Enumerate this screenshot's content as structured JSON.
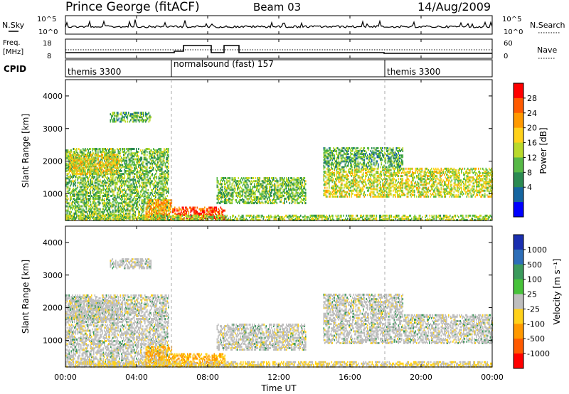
{
  "header": {
    "station": "Prince George (fitACF)",
    "beam": "Beam 03",
    "date": "14/Aug/2009"
  },
  "time_axis": {
    "label": "Time UT",
    "ticks": [
      "00:00",
      "04:00",
      "08:00",
      "12:00",
      "16:00",
      "20:00",
      "00:00"
    ],
    "range_hours": [
      0,
      24
    ]
  },
  "nsky_panel": {
    "left_label": "N.Sky",
    "right_label": "N.Search",
    "left_ticks": [
      "10^5",
      "10^0"
    ],
    "right_ticks": [
      "10^5",
      "10^0"
    ]
  },
  "freq_panel": {
    "left_label_1": "Freq.",
    "left_label_2": "[MHz]",
    "left_ticks": [
      "18",
      "8"
    ],
    "right_label": "Nave",
    "right_ticks": [
      "60",
      "0"
    ]
  },
  "cpid_panel": {
    "label": "CPID",
    "segments": [
      {
        "name": "themis 3300",
        "start_h": 0,
        "end_h": 6
      },
      {
        "name": "normalsound (fast) 157",
        "start_h": 6,
        "end_h": 18
      },
      {
        "name": "themis 3300",
        "start_h": 18,
        "end_h": 24
      }
    ]
  },
  "power_panel": {
    "ylabel": "Slant Range [km]",
    "yticks": [
      "4000",
      "3000",
      "2000",
      "1000"
    ],
    "colorbar_label": "Power [dB]",
    "colorbar_ticks": [
      "28",
      "24",
      "20",
      "16",
      "12",
      "8",
      "4"
    ],
    "colorbar_colors": [
      "#ff0000",
      "#ff5a00",
      "#ff9900",
      "#ffd11a",
      "#b9d92b",
      "#57b947",
      "#2b8a52",
      "#1565a0",
      "#0000ff"
    ]
  },
  "velocity_panel": {
    "ylabel": "Slant Range [km]",
    "yticks": [
      "4000",
      "3000",
      "2000",
      "1000"
    ],
    "colorbar_label": "Velocity [m s⁻¹]",
    "colorbar_ticks": [
      "1000",
      "500",
      "100",
      "25",
      "-25",
      "-100",
      "-500",
      "-1000"
    ],
    "colorbar_colors": [
      "#1a2fb0",
      "#2d6eb8",
      "#3b9a5c",
      "#47c23a",
      "#bebebe",
      "#ffd11a",
      "#ff9900",
      "#ff5a00",
      "#ff0000"
    ]
  },
  "chart_data": {
    "type": "heatmap",
    "x_unit": "hours UT",
    "y_unit": "km",
    "xlim": [
      0,
      24
    ],
    "ylim": [
      180,
      4500
    ],
    "backscatter_regions": [
      {
        "t0": 0.0,
        "t1": 5.8,
        "r0": 200,
        "r1": 2400,
        "power_db": 12,
        "velocity": 0
      },
      {
        "t0": 0.2,
        "t1": 3.0,
        "r0": 1600,
        "r1": 2200,
        "power_db": 18,
        "velocity": 0
      },
      {
        "t0": 2.5,
        "t1": 4.8,
        "r0": 3200,
        "r1": 3500,
        "power_db": 10,
        "velocity": 0
      },
      {
        "t0": 4.5,
        "t1": 6.0,
        "r0": 200,
        "r1": 800,
        "power_db": 22,
        "velocity": -100
      },
      {
        "t0": 6.0,
        "t1": 9.0,
        "r0": 200,
        "r1": 600,
        "power_db": 28,
        "velocity": -100
      },
      {
        "t0": 8.5,
        "t1": 13.5,
        "r0": 700,
        "r1": 1500,
        "power_db": 12,
        "velocity": 0
      },
      {
        "t0": 14.5,
        "t1": 24.0,
        "r0": 900,
        "r1": 1800,
        "power_db": 16,
        "velocity": 0
      },
      {
        "t0": 14.5,
        "t1": 19.0,
        "r0": 1800,
        "r1": 2400,
        "power_db": 10,
        "velocity": 0
      },
      {
        "t0": 0.0,
        "t1": 24.0,
        "r0": 180,
        "r1": 350,
        "power_db": 14,
        "velocity": -25
      }
    ]
  }
}
